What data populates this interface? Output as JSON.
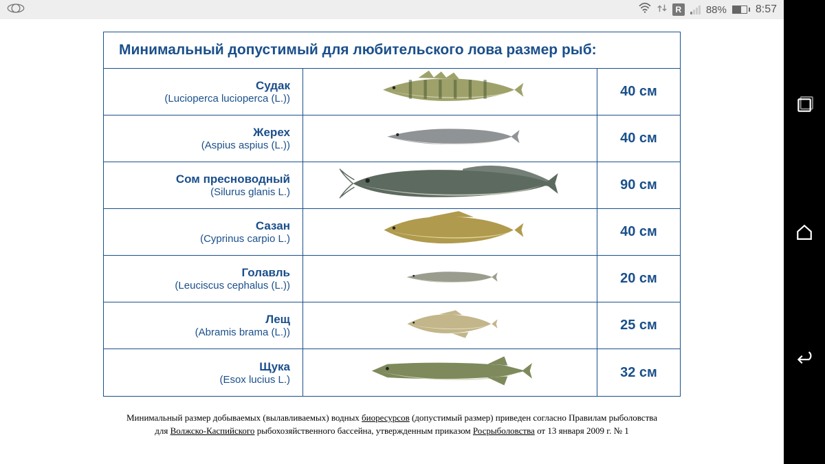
{
  "status_bar": {
    "r_badge": "R",
    "battery_pct": "88%",
    "clock": "8:57"
  },
  "table": {
    "title": "Минимальный допустимый для любительского лова размер рыб:",
    "border_color": "#1a4f8b",
    "text_color": "#1a4f8b",
    "rows": [
      {
        "ru": "Судак",
        "lat": "(Lucioperca lucioperca (L.))",
        "size": "40 см",
        "fish": {
          "body": "#9ea26a",
          "belly": "#d9d6b8",
          "stripes": true,
          "shape": "perch",
          "scale": 0.85
        }
      },
      {
        "ru": "Жерех",
        "lat": "(Aspius aspius (L.))",
        "size": "40 см",
        "fish": {
          "body": "#8f9396",
          "belly": "#e6e3da",
          "stripes": false,
          "shape": "slim",
          "scale": 0.8
        }
      },
      {
        "ru": "Сом пресноводный",
        "lat": "(Silurus glanis L.)",
        "size": "90 см",
        "fish": {
          "body": "#5c6a5f",
          "belly": "#c4c8b9",
          "stripes": false,
          "shape": "catfish",
          "scale": 1.25
        }
      },
      {
        "ru": "Сазан",
        "lat": "(Cyprinus carpio L.)",
        "size": "40 см",
        "fish": {
          "body": "#b09a4d",
          "belly": "#e7dca6",
          "stripes": false,
          "shape": "carp",
          "scale": 0.85
        }
      },
      {
        "ru": "Голавль",
        "lat": "(Leuciscus cephalus (L.))",
        "size": "20 см",
        "fish": {
          "body": "#9a9c8d",
          "belly": "#e3e0d2",
          "stripes": false,
          "shape": "slim",
          "scale": 0.55
        }
      },
      {
        "ru": "Лещ",
        "lat": "(Abramis brama (L.))",
        "size": "25 см",
        "fish": {
          "body": "#c2b68a",
          "belly": "#ece6cc",
          "stripes": false,
          "shape": "bream",
          "scale": 0.55
        }
      },
      {
        "ru": "Щука",
        "lat": "(Esox lucius L.)",
        "size": "32 см",
        "fish": {
          "body": "#7e8a5c",
          "belly": "#d5d7b9",
          "stripes": false,
          "shape": "pike",
          "scale": 0.95
        }
      }
    ]
  },
  "footnote": {
    "line1_a": "Минимальный размер добываемых (вылавливаемых) водных ",
    "line1_u": "биоресурсов",
    "line1_b": " (допустимый размер) приведен согласно Правилам рыболовства",
    "line2_a": "для ",
    "line2_u": "Волжско-Каспийского",
    "line2_b": " рыбохозяйственного бассейна, утвержденным приказом ",
    "line2_u2": "Росрыболовства",
    "line2_c": " от 13 января 2009 г. № 1"
  }
}
